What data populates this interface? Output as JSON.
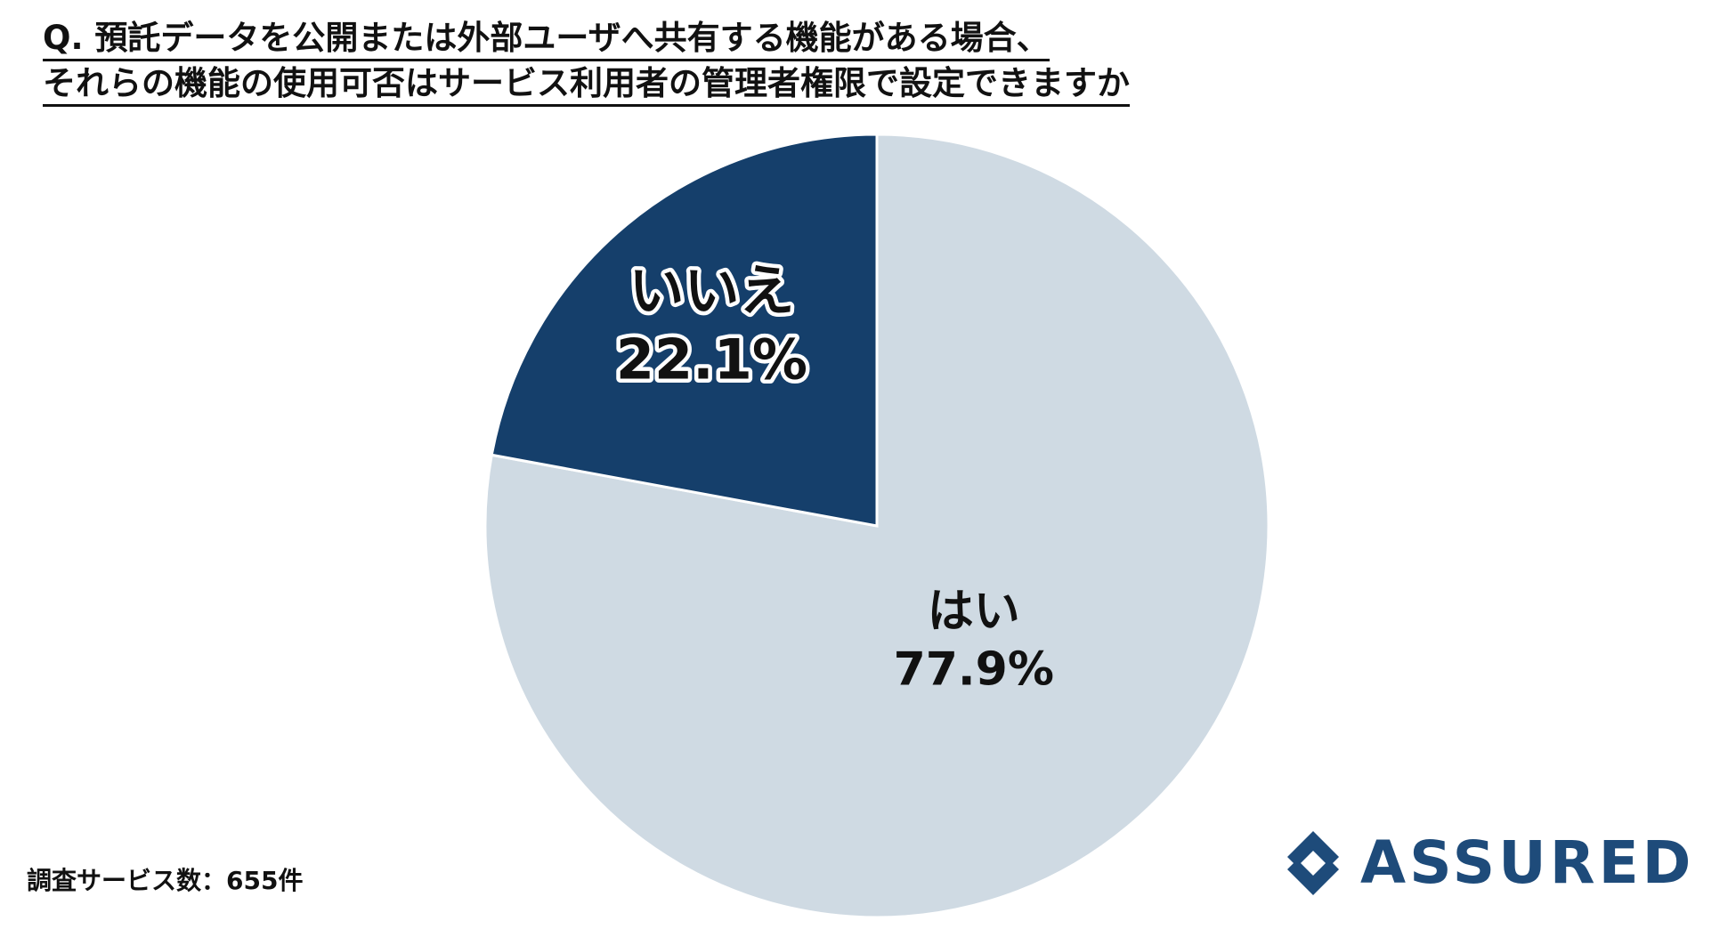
{
  "title_lines": [
    "Q. 預託データを公開または外部ユーザへ共有する機能がある場合、",
    "それらの機能の使用可否はサービス利用者の管理者権限で設定できますか"
  ],
  "chart_data": {
    "type": "pie",
    "title": "Q. 預託データを公開または外部ユーザへ共有する機能がある場合、それらの機能の使用可否はサービス利用者の管理者権限で設定できますか",
    "start_angle_deg": 0,
    "direction": "clockwise",
    "slices": [
      {
        "label": "はい",
        "value": 77.9,
        "value_text": "77.9%",
        "color": "#cfdae3",
        "text_color": "#111111"
      },
      {
        "label": "いいえ",
        "value": 22.1,
        "value_text": "22.1%",
        "color": "#153f6b",
        "text_color": "#111111",
        "halo": "#ffffff"
      }
    ]
  },
  "footnote": "調査サービス数：655件",
  "brand": {
    "name": "ASSURED",
    "color": "#1e4b7a",
    "icon": "assured-logo-icon"
  }
}
